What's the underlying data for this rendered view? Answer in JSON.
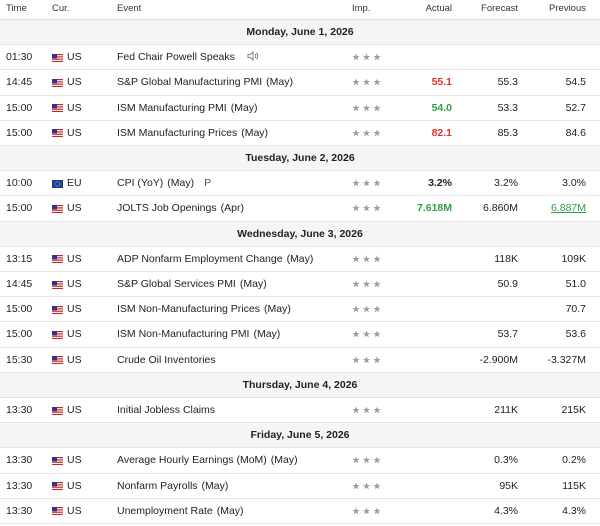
{
  "header": {
    "time": "Time",
    "cur": "Cur.",
    "event": "Event",
    "imp": "Imp.",
    "actual": "Actual",
    "forecast": "Forecast",
    "previous": "Previous"
  },
  "groups": [
    {
      "date": "Monday, June 1, 2026",
      "rows": [
        {
          "time": "01:30",
          "currency": "US",
          "event": "Fed Chair Powell Speaks",
          "audio": true
        },
        {
          "time": "14:45",
          "currency": "US",
          "event": "S&P Global Manufacturing PMI",
          "period": "(May)",
          "actual": "55.1",
          "actual_color": "#e03131",
          "forecast": "55.3",
          "previous": "54.5"
        },
        {
          "time": "15:00",
          "currency": "US",
          "event": "ISM Manufacturing PMI",
          "period": "(May)",
          "actual": "54.0",
          "actual_color": "#2f9e44",
          "forecast": "53.3",
          "previous": "52.7"
        },
        {
          "time": "15:00",
          "currency": "US",
          "event": "ISM Manufacturing Prices",
          "period": "(May)",
          "actual": "82.1",
          "actual_color": "#e03131",
          "forecast": "85.3",
          "previous": "84.6"
        }
      ]
    },
    {
      "date": "Tuesday, June 2, 2026",
      "rows": [
        {
          "time": "10:00",
          "currency": "EU",
          "event": "CPI (YoY)",
          "period": "(May)",
          "badge": "P",
          "actual": "3.2%",
          "actual_color": "#222222",
          "forecast": "3.2%",
          "previous": "3.0%"
        },
        {
          "time": "15:00",
          "currency": "US",
          "event": "JOLTS Job Openings",
          "period": "(Apr)",
          "actual": "7.618M",
          "actual_color": "#2f9e44",
          "forecast": "6.860M",
          "previous": "6.887M",
          "previous_color": "#2f9e44",
          "previous_revised": true
        }
      ]
    },
    {
      "date": "Wednesday, June 3, 2026",
      "rows": [
        {
          "time": "13:15",
          "currency": "US",
          "event": "ADP Nonfarm Employment Change",
          "period": "(May)",
          "forecast": "118K",
          "previous": "109K"
        },
        {
          "time": "14:45",
          "currency": "US",
          "event": "S&P Global Services PMI",
          "period": "(May)",
          "forecast": "50.9",
          "previous": "51.0"
        },
        {
          "time": "15:00",
          "currency": "US",
          "event": "ISM Non-Manufacturing Prices",
          "period": "(May)",
          "previous": "70.7"
        },
        {
          "time": "15:00",
          "currency": "US",
          "event": "ISM Non-Manufacturing PMI",
          "period": "(May)",
          "forecast": "53.7",
          "previous": "53.6"
        },
        {
          "time": "15:30",
          "currency": "US",
          "event": "Crude Oil Inventories",
          "forecast": "-2.900M",
          "previous": "-3.327M"
        }
      ]
    },
    {
      "date": "Thursday, June 4, 2026",
      "rows": [
        {
          "time": "13:30",
          "currency": "US",
          "event": "Initial Jobless Claims",
          "forecast": "211K",
          "previous": "215K"
        }
      ]
    },
    {
      "date": "Friday, June 5, 2026",
      "rows": [
        {
          "time": "13:30",
          "currency": "US",
          "event": "Average Hourly Earnings (MoM)",
          "period": "(May)",
          "forecast": "0.3%",
          "previous": "0.2%"
        },
        {
          "time": "13:30",
          "currency": "US",
          "event": "Nonfarm Payrolls",
          "period": "(May)",
          "forecast": "95K",
          "previous": "115K"
        },
        {
          "time": "13:30",
          "currency": "US",
          "event": "Unemployment Rate",
          "period": "(May)",
          "forecast": "4.3%",
          "previous": "4.3%"
        }
      ]
    }
  ]
}
